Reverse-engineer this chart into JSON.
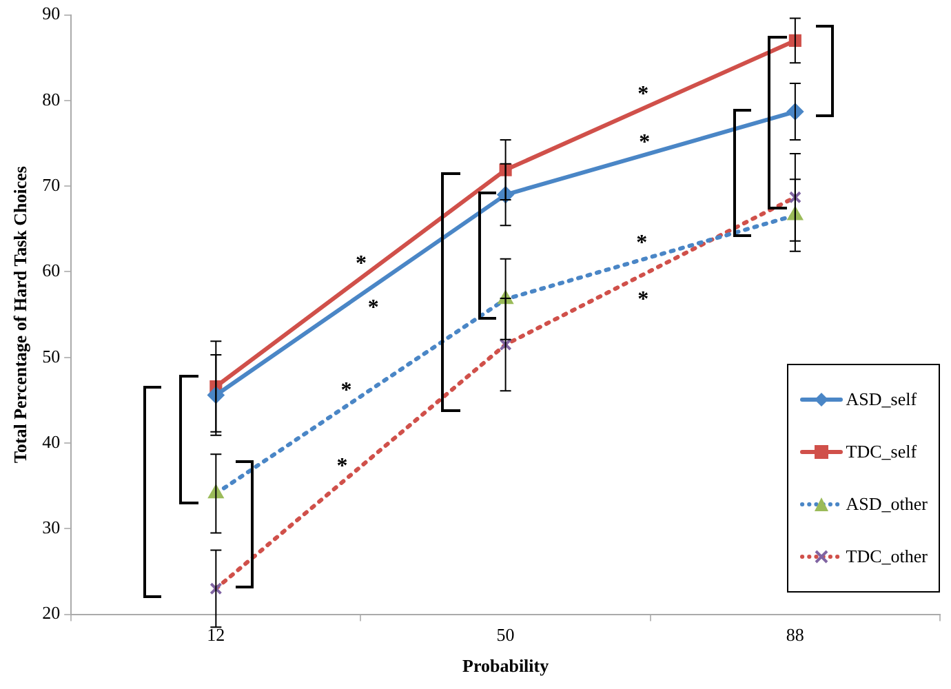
{
  "chart_data": {
    "type": "line",
    "xlabel": "Probability",
    "ylabel": "Total Percentage of Hard Task Choices",
    "categories": [
      "12",
      "50",
      "88"
    ],
    "series": [
      {
        "name": "ASD_self",
        "color": "#4a86c6",
        "colors": [
          "#4a86c6",
          "#4a86c6",
          "#4a86c6"
        ],
        "marker": "diamond",
        "line_style": "solid",
        "values": [
          45.6,
          69.0,
          78.7
        ],
        "errors": [
          4.7,
          3.6,
          3.3
        ]
      },
      {
        "name": "TDC_self",
        "color": "#d0504a",
        "colors": [
          "#d0504a",
          "#d0504a",
          "#d0504a"
        ],
        "marker": "square",
        "line_style": "solid",
        "values": [
          46.6,
          71.9,
          87.0
        ],
        "errors": [
          5.3,
          3.5,
          2.6
        ]
      },
      {
        "name": "ASD_other",
        "color": "#4a86c6",
        "colors": [
          "#9bbb59",
          "#9bbb59",
          "#9bbb59"
        ],
        "marker": "triangle",
        "line_style": "dotted",
        "values": [
          34.1,
          56.8,
          66.6
        ],
        "errors": [
          4.6,
          4.7,
          4.2
        ]
      },
      {
        "name": "TDC_other",
        "color": "#d0504a",
        "colors": [
          "#8064a2",
          "#8064a2",
          "#8064a2"
        ],
        "marker": "cross",
        "line_style": "dotted",
        "values": [
          23.0,
          51.5,
          68.7
        ],
        "errors": [
          4.5,
          5.4,
          5.1
        ]
      }
    ],
    "ylim": [
      20,
      90
    ],
    "yticks": [
      20,
      30,
      40,
      50,
      60,
      70,
      80,
      90
    ],
    "grid": false,
    "legend": "bottom right",
    "annotations": [
      "*",
      "*",
      "*",
      "*",
      "*",
      "*",
      "*",
      "*"
    ]
  }
}
